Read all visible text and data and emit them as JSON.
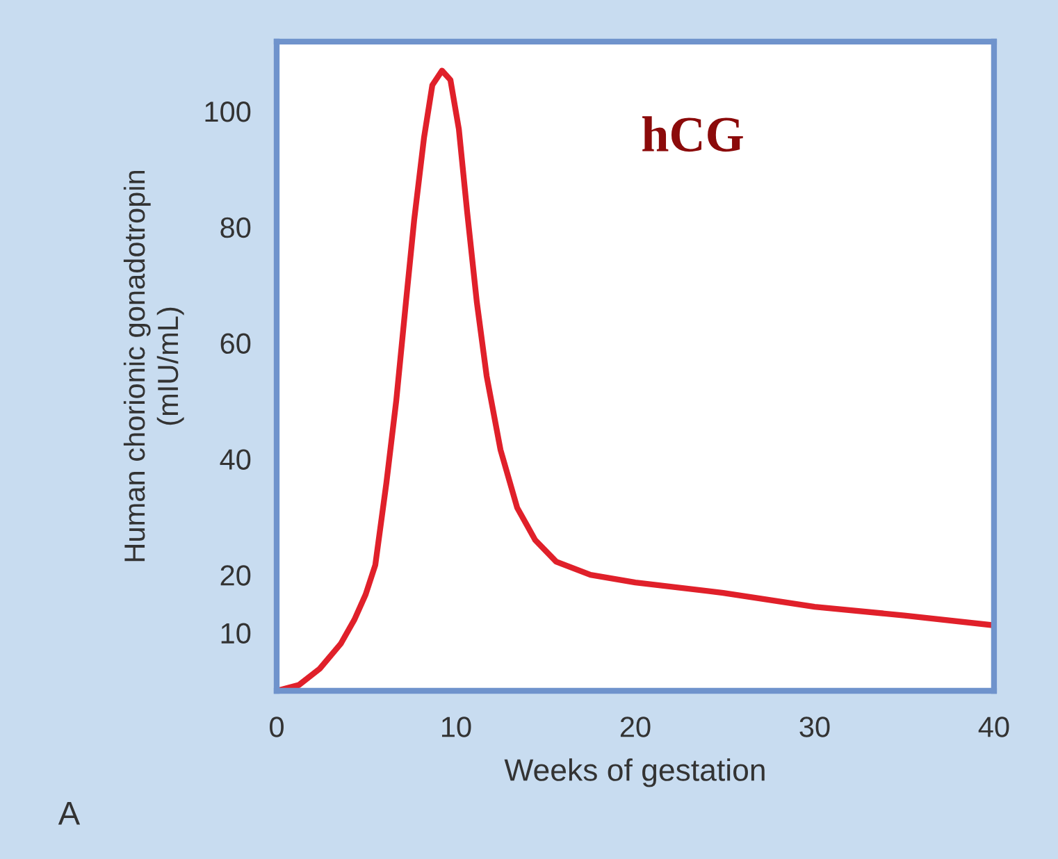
{
  "chart_data": {
    "type": "line",
    "xlabel": "Weeks of gestation",
    "ylabel": "Human chorionic gonadotropin\n(mIU/mL)",
    "x": [
      0,
      1.24,
      2.4,
      3.57,
      4.34,
      4.96,
      5.5,
      6.12,
      6.67,
      7.21,
      7.67,
      8.22,
      8.68,
      9.22,
      9.69,
      10.16,
      10.62,
      11.16,
      11.71,
      12.48,
      13.41,
      14.42,
      15.58,
      17.5,
      20,
      24.9,
      30,
      35,
      40
    ],
    "series": [
      {
        "color": "#e0202a",
        "values": [
          0,
          1,
          3.8,
          8.1,
          12.3,
          16.6,
          21.7,
          35.9,
          50.1,
          67.1,
          81.3,
          95.5,
          104.5,
          107,
          105.4,
          96.9,
          82.7,
          67.1,
          54.3,
          41.6,
          31.6,
          26,
          22.3,
          20,
          18.7,
          16.9,
          14.5,
          13,
          11.3
        ]
      }
    ],
    "xlim": [
      0,
      40
    ],
    "xticks": [
      0,
      10,
      20,
      30,
      40
    ],
    "ylim": [
      0,
      112
    ],
    "yticks": [
      10,
      20,
      40,
      60,
      80,
      100
    ],
    "annotations": [
      "hCG",
      "A"
    ],
    "grid": false,
    "legend": false,
    "marker": "none",
    "line_style": "solid"
  }
}
